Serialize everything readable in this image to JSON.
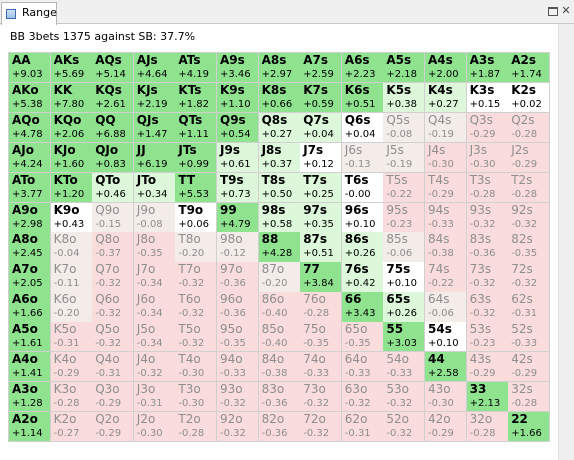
{
  "window": {
    "tab_label": "Range",
    "close_glyph": "✕"
  },
  "summary": "BB 3bets 1375 against SB: 37.7%",
  "colors": {
    "strong_green": "#8fe38f",
    "light_green": "#dcf7d9",
    "white": "#ffffff",
    "fold_pink": "#fadcdc",
    "fold_light": "#f3ece9"
  },
  "grid": {
    "rows": [
      [
        [
          "AA",
          "+9.03",
          "s"
        ],
        [
          "AKs",
          "+5.69",
          "s"
        ],
        [
          "AQs",
          "+5.14",
          "s"
        ],
        [
          "AJs",
          "+4.64",
          "s"
        ],
        [
          "ATs",
          "+4.19",
          "s"
        ],
        [
          "A9s",
          "+3.46",
          "s"
        ],
        [
          "A8s",
          "+2.97",
          "s"
        ],
        [
          "A7s",
          "+2.59",
          "s"
        ],
        [
          "A6s",
          "+2.23",
          "s"
        ],
        [
          "A5s",
          "+2.18",
          "s"
        ],
        [
          "A4s",
          "+2.00",
          "s"
        ],
        [
          "A3s",
          "+1.87",
          "s"
        ],
        [
          "A2s",
          "+1.74",
          "s"
        ]
      ],
      [
        [
          "AKo",
          "+5.38",
          "s"
        ],
        [
          "KK",
          "+7.80",
          "s"
        ],
        [
          "KQs",
          "+2.61",
          "s"
        ],
        [
          "KJs",
          "+2.19",
          "s"
        ],
        [
          "KTs",
          "+1.82",
          "s"
        ],
        [
          "K9s",
          "+1.10",
          "s"
        ],
        [
          "K8s",
          "+0.66",
          "s"
        ],
        [
          "K7s",
          "+0.59",
          "s"
        ],
        [
          "K6s",
          "+0.51",
          "s"
        ],
        [
          "K5s",
          "+0.38",
          "l"
        ],
        [
          "K4s",
          "+0.27",
          "l"
        ],
        [
          "K3s",
          "+0.15",
          "w"
        ],
        [
          "K2s",
          "+0.02",
          "w"
        ]
      ],
      [
        [
          "AQo",
          "+4.78",
          "s"
        ],
        [
          "KQo",
          "+2.06",
          "s"
        ],
        [
          "QQ",
          "+6.88",
          "s"
        ],
        [
          "QJs",
          "+1.47",
          "s"
        ],
        [
          "QTs",
          "+1.11",
          "s"
        ],
        [
          "Q9s",
          "+0.54",
          "s"
        ],
        [
          "Q8s",
          "+0.27",
          "l"
        ],
        [
          "Q7s",
          "+0.04",
          "l"
        ],
        [
          "Q6s",
          "+0.04",
          "w"
        ],
        [
          "Q5s",
          "-0.08",
          "f"
        ],
        [
          "Q4s",
          "-0.19",
          "f"
        ],
        [
          "Q3s",
          "-0.29",
          "p"
        ],
        [
          "Q2s",
          "-0.28",
          "p"
        ]
      ],
      [
        [
          "AJo",
          "+4.24",
          "s"
        ],
        [
          "KJo",
          "+1.60",
          "s"
        ],
        [
          "QJo",
          "+0.83",
          "s"
        ],
        [
          "JJ",
          "+6.19",
          "s"
        ],
        [
          "JTs",
          "+0.99",
          "s"
        ],
        [
          "J9s",
          "+0.61",
          "l"
        ],
        [
          "J8s",
          "+0.37",
          "l"
        ],
        [
          "J7s",
          "+0.12",
          "w"
        ],
        [
          "J6s",
          "-0.13",
          "f"
        ],
        [
          "J5s",
          "-0.19",
          "f"
        ],
        [
          "J4s",
          "-0.30",
          "p"
        ],
        [
          "J3s",
          "-0.30",
          "p"
        ],
        [
          "J2s",
          "-0.29",
          "p"
        ]
      ],
      [
        [
          "ATo",
          "+3.77",
          "s"
        ],
        [
          "KTo",
          "+1.20",
          "s"
        ],
        [
          "QTo",
          "+0.46",
          "l"
        ],
        [
          "JTo",
          "+0.34",
          "l"
        ],
        [
          "TT",
          "+5.53",
          "s"
        ],
        [
          "T9s",
          "+0.73",
          "l"
        ],
        [
          "T8s",
          "+0.50",
          "l"
        ],
        [
          "T7s",
          "+0.25",
          "l"
        ],
        [
          "T6s",
          "-0.00",
          "w"
        ],
        [
          "T5s",
          "-0.22",
          "p"
        ],
        [
          "T4s",
          "-0.29",
          "p"
        ],
        [
          "T3s",
          "-0.28",
          "p"
        ],
        [
          "T2s",
          "-0.28",
          "p"
        ]
      ],
      [
        [
          "A9o",
          "+2.98",
          "s"
        ],
        [
          "K9o",
          "+0.43",
          "w"
        ],
        [
          "Q9o",
          "-0.15",
          "f"
        ],
        [
          "J9o",
          "-0.08",
          "f"
        ],
        [
          "T9o",
          "+0.06",
          "w"
        ],
        [
          "99",
          "+4.79",
          "s"
        ],
        [
          "98s",
          "+0.58",
          "l"
        ],
        [
          "97s",
          "+0.35",
          "l"
        ],
        [
          "96s",
          "+0.10",
          "w"
        ],
        [
          "95s",
          "-0.23",
          "p"
        ],
        [
          "94s",
          "-0.33",
          "p"
        ],
        [
          "93s",
          "-0.32",
          "p"
        ],
        [
          "92s",
          "-0.32",
          "p"
        ]
      ],
      [
        [
          "A8o",
          "+2.45",
          "s"
        ],
        [
          "K8o",
          "-0.04",
          "f"
        ],
        [
          "Q8o",
          "-0.37",
          "p"
        ],
        [
          "J8o",
          "-0.35",
          "p"
        ],
        [
          "T8o",
          "-0.20",
          "f"
        ],
        [
          "98o",
          "-0.12",
          "f"
        ],
        [
          "88",
          "+4.28",
          "s"
        ],
        [
          "87s",
          "+0.51",
          "l"
        ],
        [
          "86s",
          "+0.26",
          "l"
        ],
        [
          "85s",
          "-0.06",
          "f"
        ],
        [
          "84s",
          "-0.38",
          "p"
        ],
        [
          "83s",
          "-0.36",
          "p"
        ],
        [
          "82s",
          "-0.35",
          "p"
        ]
      ],
      [
        [
          "A7o",
          "+2.05",
          "s"
        ],
        [
          "K7o",
          "-0.11",
          "f"
        ],
        [
          "Q7o",
          "-0.32",
          "p"
        ],
        [
          "J7o",
          "-0.34",
          "p"
        ],
        [
          "T7o",
          "-0.32",
          "p"
        ],
        [
          "97o",
          "-0.36",
          "p"
        ],
        [
          "87o",
          "-0.20",
          "f"
        ],
        [
          "77",
          "+3.84",
          "s"
        ],
        [
          "76s",
          "+0.42",
          "l"
        ],
        [
          "75s",
          "+0.10",
          "w"
        ],
        [
          "74s",
          "-0.22",
          "p"
        ],
        [
          "73s",
          "-0.32",
          "p"
        ],
        [
          "72s",
          "-0.32",
          "p"
        ]
      ],
      [
        [
          "A6o",
          "+1.66",
          "s"
        ],
        [
          "K6o",
          "-0.20",
          "f"
        ],
        [
          "Q6o",
          "-0.32",
          "p"
        ],
        [
          "J6o",
          "-0.34",
          "p"
        ],
        [
          "T6o",
          "-0.32",
          "p"
        ],
        [
          "96o",
          "-0.36",
          "p"
        ],
        [
          "86o",
          "-0.40",
          "p"
        ],
        [
          "76o",
          "-0.28",
          "p"
        ],
        [
          "66",
          "+3.43",
          "s"
        ],
        [
          "65s",
          "+0.26",
          "l"
        ],
        [
          "64s",
          "-0.06",
          "f"
        ],
        [
          "63s",
          "-0.32",
          "p"
        ],
        [
          "62s",
          "-0.31",
          "p"
        ]
      ],
      [
        [
          "A5o",
          "+1.61",
          "s"
        ],
        [
          "K5o",
          "-0.31",
          "p"
        ],
        [
          "Q5o",
          "-0.32",
          "p"
        ],
        [
          "J5o",
          "-0.34",
          "p"
        ],
        [
          "T5o",
          "-0.32",
          "p"
        ],
        [
          "95o",
          "-0.35",
          "p"
        ],
        [
          "85o",
          "-0.40",
          "p"
        ],
        [
          "75o",
          "-0.35",
          "p"
        ],
        [
          "65o",
          "-0.35",
          "p"
        ],
        [
          "55",
          "+3.03",
          "s"
        ],
        [
          "54s",
          "+0.10",
          "w"
        ],
        [
          "53s",
          "-0.23",
          "p"
        ],
        [
          "52s",
          "-0.33",
          "p"
        ]
      ],
      [
        [
          "A4o",
          "+1.41",
          "s"
        ],
        [
          "K4o",
          "-0.29",
          "p"
        ],
        [
          "Q4o",
          "-0.31",
          "p"
        ],
        [
          "J4o",
          "-0.32",
          "p"
        ],
        [
          "T4o",
          "-0.30",
          "p"
        ],
        [
          "94o",
          "-0.33",
          "p"
        ],
        [
          "84o",
          "-0.38",
          "p"
        ],
        [
          "74o",
          "-0.33",
          "p"
        ],
        [
          "64o",
          "-0.33",
          "p"
        ],
        [
          "54o",
          "-0.33",
          "p"
        ],
        [
          "44",
          "+2.58",
          "s"
        ],
        [
          "43s",
          "-0.29",
          "p"
        ],
        [
          "42s",
          "-0.29",
          "p"
        ]
      ],
      [
        [
          "A3o",
          "+1.28",
          "s"
        ],
        [
          "K3o",
          "-0.28",
          "p"
        ],
        [
          "Q3o",
          "-0.29",
          "p"
        ],
        [
          "J3o",
          "-0.31",
          "p"
        ],
        [
          "T3o",
          "-0.30",
          "p"
        ],
        [
          "93o",
          "-0.32",
          "p"
        ],
        [
          "83o",
          "-0.36",
          "p"
        ],
        [
          "73o",
          "-0.32",
          "p"
        ],
        [
          "63o",
          "-0.32",
          "p"
        ],
        [
          "53o",
          "-0.32",
          "p"
        ],
        [
          "43o",
          "-0.30",
          "p"
        ],
        [
          "33",
          "+2.13",
          "s"
        ],
        [
          "32s",
          "-0.28",
          "p"
        ]
      ],
      [
        [
          "A2o",
          "+1.14",
          "s"
        ],
        [
          "K2o",
          "-0.27",
          "p"
        ],
        [
          "Q2o",
          "-0.29",
          "p"
        ],
        [
          "J2o",
          "-0.30",
          "p"
        ],
        [
          "T2o",
          "-0.28",
          "p"
        ],
        [
          "92o",
          "-0.32",
          "p"
        ],
        [
          "82o",
          "-0.36",
          "p"
        ],
        [
          "72o",
          "-0.32",
          "p"
        ],
        [
          "62o",
          "-0.31",
          "p"
        ],
        [
          "52o",
          "-0.32",
          "p"
        ],
        [
          "42o",
          "-0.29",
          "p"
        ],
        [
          "32o",
          "-0.28",
          "p"
        ],
        [
          "22",
          "+1.66",
          "s"
        ]
      ]
    ]
  }
}
